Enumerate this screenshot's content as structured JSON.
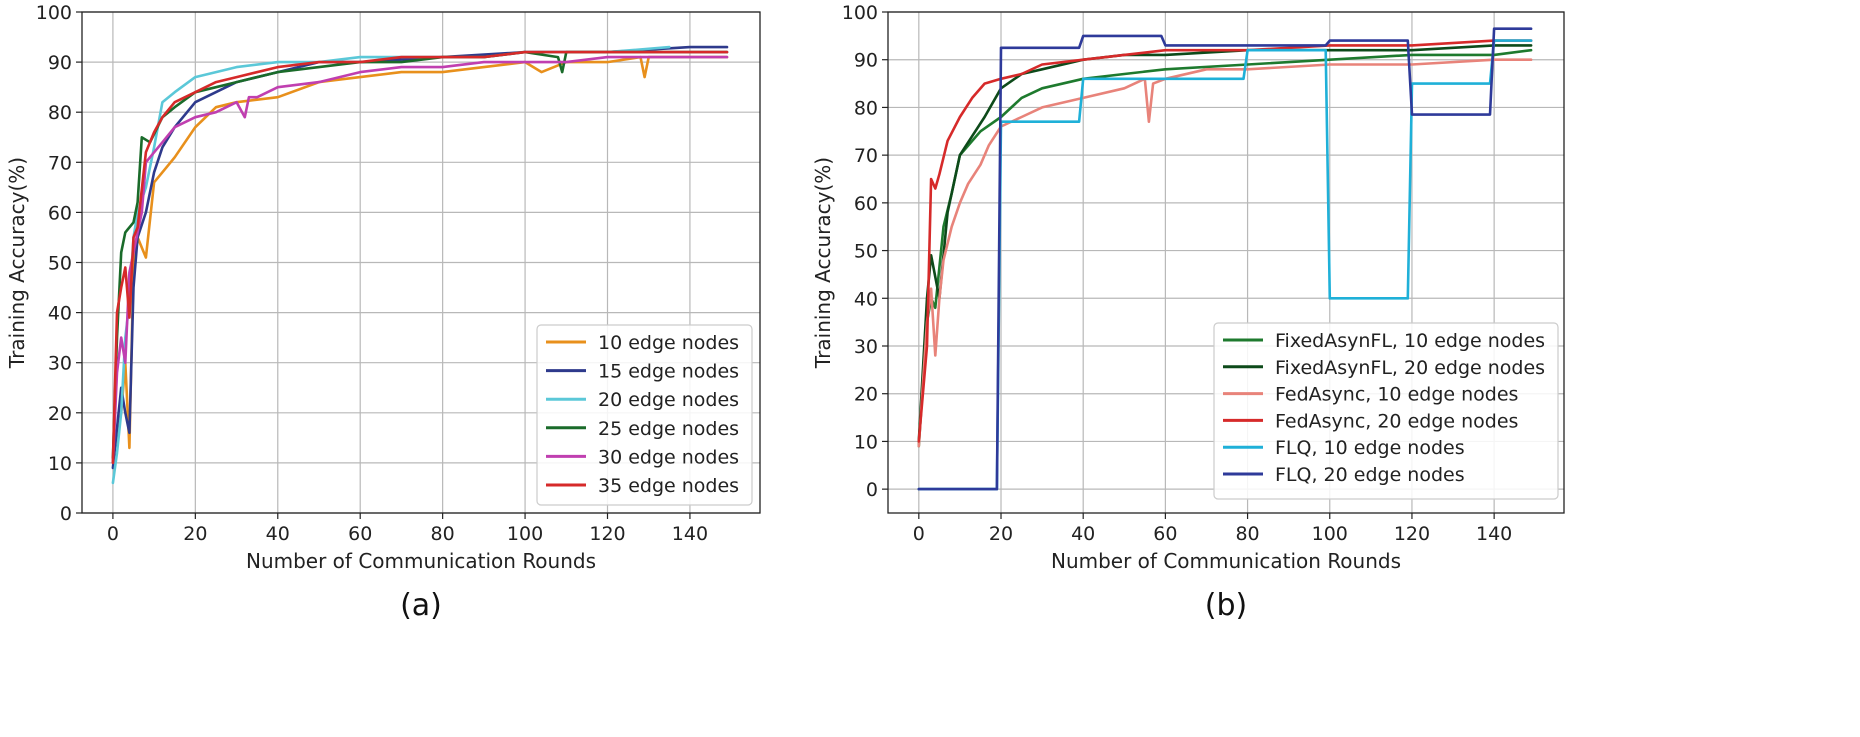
{
  "chart_data": [
    {
      "type": "line",
      "caption": "(a)",
      "xlabel": "Number of Communication Rounds",
      "ylabel": "Training Accuracy(%)",
      "xlim": [
        -7.5,
        157
      ],
      "ylim": [
        0,
        100
      ],
      "xticks": [
        0,
        20,
        40,
        60,
        80,
        100,
        120,
        140
      ],
      "yticks": [
        0,
        10,
        20,
        30,
        40,
        50,
        60,
        70,
        80,
        90,
        100
      ],
      "grid": true,
      "legend_position": "lower-right",
      "series": [
        {
          "name": "10 edge nodes",
          "color": "#e8901c",
          "x": [
            0,
            2,
            3,
            4,
            5,
            6,
            8,
            10,
            12,
            15,
            20,
            25,
            30,
            40,
            50,
            60,
            70,
            80,
            90,
            100,
            104,
            110,
            120,
            128,
            129,
            130,
            140,
            149
          ],
          "y": [
            11,
            20,
            30,
            13,
            50,
            55,
            51,
            66,
            68,
            71,
            77,
            81,
            82,
            83,
            86,
            87,
            88,
            88,
            89,
            90,
            88,
            90,
            90,
            91,
            87,
            91,
            91,
            91
          ]
        },
        {
          "name": "15 edge nodes",
          "color": "#2e3a8c",
          "x": [
            0,
            2,
            3,
            4,
            5,
            6,
            8,
            10,
            12,
            15,
            20,
            30,
            40,
            50,
            60,
            80,
            100,
            120,
            140,
            149
          ],
          "y": [
            9,
            25,
            20,
            16,
            45,
            55,
            60,
            68,
            73,
            77,
            82,
            86,
            88,
            90,
            90,
            91,
            92,
            92,
            93,
            93
          ]
        },
        {
          "name": "20 edge nodes",
          "color": "#5bc8d8",
          "x": [
            0,
            1,
            2,
            3,
            4,
            5,
            6,
            8,
            10,
            12,
            15,
            20,
            25,
            30,
            40,
            50,
            60,
            70,
            80,
            90,
            100,
            110,
            120,
            135
          ],
          "y": [
            6,
            12,
            20,
            35,
            42,
            55,
            60,
            65,
            73,
            82,
            84,
            87,
            88,
            89,
            90,
            90,
            91,
            91,
            91,
            91,
            92,
            92,
            92,
            93
          ]
        },
        {
          "name": "25 edge nodes",
          "color": "#1a6b2a",
          "x": [
            0,
            1,
            2,
            3,
            5,
            6,
            7,
            9,
            12,
            15,
            20,
            25,
            30,
            40,
            50,
            60,
            70,
            80,
            90,
            100,
            108,
            109,
            110,
            120,
            130,
            149
          ],
          "y": [
            11,
            35,
            52,
            56,
            58,
            62,
            75,
            74,
            79,
            81,
            84,
            85,
            86,
            88,
            89,
            90,
            90,
            91,
            91,
            92,
            91,
            88,
            92,
            92,
            92,
            92
          ]
        },
        {
          "name": "30 edge nodes",
          "color": "#c03fb0",
          "x": [
            0,
            1,
            2,
            3,
            4,
            5,
            6,
            7,
            8,
            10,
            12,
            15,
            20,
            25,
            30,
            32,
            33,
            35,
            40,
            50,
            60,
            70,
            80,
            90,
            100,
            110,
            120,
            130,
            140,
            149
          ],
          "y": [
            10,
            28,
            35,
            30,
            48,
            52,
            56,
            60,
            70,
            72,
            74,
            77,
            79,
            80,
            82,
            79,
            83,
            83,
            85,
            86,
            88,
            89,
            89,
            90,
            90,
            90,
            91,
            91,
            91,
            91
          ]
        },
        {
          "name": "35 edge nodes",
          "color": "#d62a2a",
          "x": [
            0,
            1,
            2,
            3,
            4,
            5,
            6,
            8,
            10,
            12,
            15,
            20,
            25,
            30,
            40,
            50,
            60,
            70,
            80,
            90,
            100,
            110,
            120,
            140,
            149
          ],
          "y": [
            10,
            40,
            45,
            49,
            39,
            55,
            57,
            72,
            76,
            79,
            82,
            84,
            86,
            87,
            89,
            90,
            90,
            91,
            91,
            91,
            92,
            92,
            92,
            92,
            92
          ]
        }
      ]
    },
    {
      "type": "line",
      "caption": "(b)",
      "xlabel": "Number of Communication Rounds",
      "ylabel": "Training Accuracy(%)",
      "xlim": [
        -7.5,
        157
      ],
      "ylim": [
        -5,
        100
      ],
      "xticks": [
        0,
        20,
        40,
        60,
        80,
        100,
        120,
        140
      ],
      "yticks": [
        0,
        10,
        20,
        30,
        40,
        50,
        60,
        70,
        80,
        90,
        100
      ],
      "grid": true,
      "legend_position": "lower-right",
      "series": [
        {
          "name": "FixedAsynFL, 10 edge nodes",
          "color": "#1e7a2e",
          "x": [
            0,
            2,
            3,
            4,
            6,
            8,
            10,
            12,
            15,
            20,
            25,
            30,
            40,
            50,
            60,
            80,
            100,
            120,
            140,
            149
          ],
          "y": [
            9,
            35,
            40,
            38,
            55,
            62,
            70,
            72,
            75,
            78,
            82,
            84,
            86,
            87,
            88,
            89,
            90,
            91,
            91,
            92
          ]
        },
        {
          "name": "FixedAsynFL, 20 edge nodes",
          "color": "#0d4a1a",
          "x": [
            0,
            2,
            3,
            5,
            7,
            10,
            13,
            16,
            20,
            25,
            30,
            40,
            50,
            60,
            80,
            100,
            120,
            140,
            149
          ],
          "y": [
            10,
            40,
            49,
            40,
            58,
            70,
            74,
            78,
            84,
            87,
            88,
            90,
            91,
            91,
            92,
            92,
            92,
            93,
            93
          ]
        },
        {
          "name": "FedAsync, 10 edge nodes",
          "color": "#e8837a",
          "x": [
            0,
            2,
            3,
            4,
            5,
            6,
            8,
            10,
            12,
            15,
            17,
            20,
            25,
            30,
            40,
            50,
            55,
            56,
            57,
            60,
            70,
            80,
            100,
            120,
            140,
            149
          ],
          "y": [
            9,
            35,
            42,
            28,
            40,
            48,
            55,
            60,
            64,
            68,
            72,
            76,
            78,
            80,
            82,
            84,
            86,
            77,
            85,
            86,
            88,
            88,
            89,
            89,
            90,
            90
          ]
        },
        {
          "name": "FedAsync, 20 edge nodes",
          "color": "#d62a2a",
          "x": [
            0,
            2,
            3,
            4,
            5,
            7,
            10,
            13,
            16,
            20,
            25,
            30,
            40,
            50,
            60,
            80,
            100,
            120,
            140,
            149
          ],
          "y": [
            10,
            30,
            65,
            63,
            66,
            73,
            78,
            82,
            85,
            86,
            87,
            89,
            90,
            91,
            92,
            92,
            93,
            93,
            94,
            94
          ]
        },
        {
          "name": "FLQ, 10 edge nodes",
          "color": "#1fb0d8",
          "x": [
            0,
            19,
            20,
            39,
            40,
            79,
            80,
            99,
            100,
            119,
            120,
            139,
            140,
            149
          ],
          "y": [
            0,
            0,
            77,
            77,
            86,
            86,
            92,
            92,
            40,
            40,
            85,
            85,
            94,
            94
          ]
        },
        {
          "name": "FLQ, 20 edge nodes",
          "color": "#2e3a9a",
          "x": [
            0,
            19,
            20,
            39,
            40,
            59,
            60,
            79,
            80,
            99,
            100,
            119,
            120,
            139,
            140,
            149
          ],
          "y": [
            0,
            0,
            92.5,
            92.5,
            95,
            95,
            93,
            93,
            93,
            93,
            94,
            94,
            78.5,
            78.5,
            96.5,
            96.5
          ]
        }
      ]
    }
  ]
}
